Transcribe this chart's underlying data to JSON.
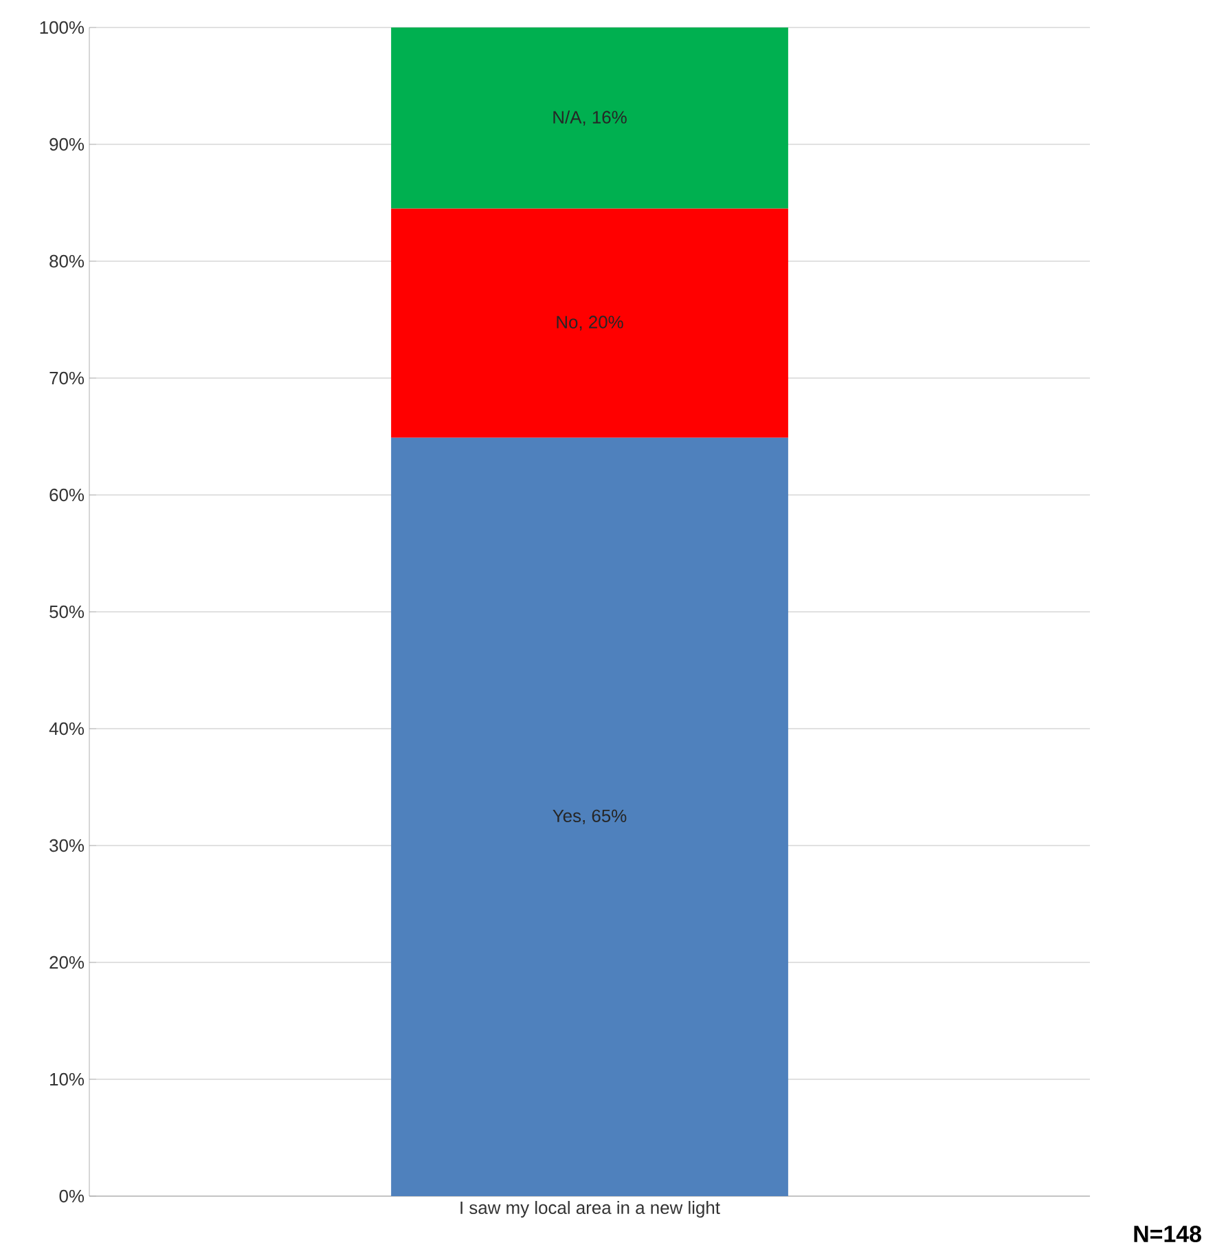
{
  "chart_data": {
    "type": "bar",
    "stacked": true,
    "categories": [
      "I saw my local area in a new light"
    ],
    "series": [
      {
        "color": "#4f81bd",
        "values": [
          64.9
        ],
        "value_labels": [
          "Yes, 65%"
        ]
      },
      {
        "color": "#ff0000",
        "values": [
          19.6
        ],
        "value_labels": [
          "No, 20%"
        ]
      },
      {
        "color": "#00b050",
        "values": [
          15.5
        ],
        "value_labels": [
          "N/A, 16%"
        ]
      }
    ],
    "ylim": [
      0,
      100
    ],
    "yticks": [
      {
        "value": 0,
        "label": "0%"
      },
      {
        "value": 10,
        "label": "10%"
      },
      {
        "value": 20,
        "label": "20%"
      },
      {
        "value": 30,
        "label": "30%"
      },
      {
        "value": 40,
        "label": "40%"
      },
      {
        "value": 50,
        "label": "50%"
      },
      {
        "value": 60,
        "label": "60%"
      },
      {
        "value": 70,
        "label": "70%"
      },
      {
        "value": 80,
        "label": "80%"
      },
      {
        "value": 90,
        "label": "90%"
      },
      {
        "value": 100,
        "label": "100%"
      }
    ],
    "grid": "y",
    "annotations": [
      "**N=148**"
    ]
  }
}
